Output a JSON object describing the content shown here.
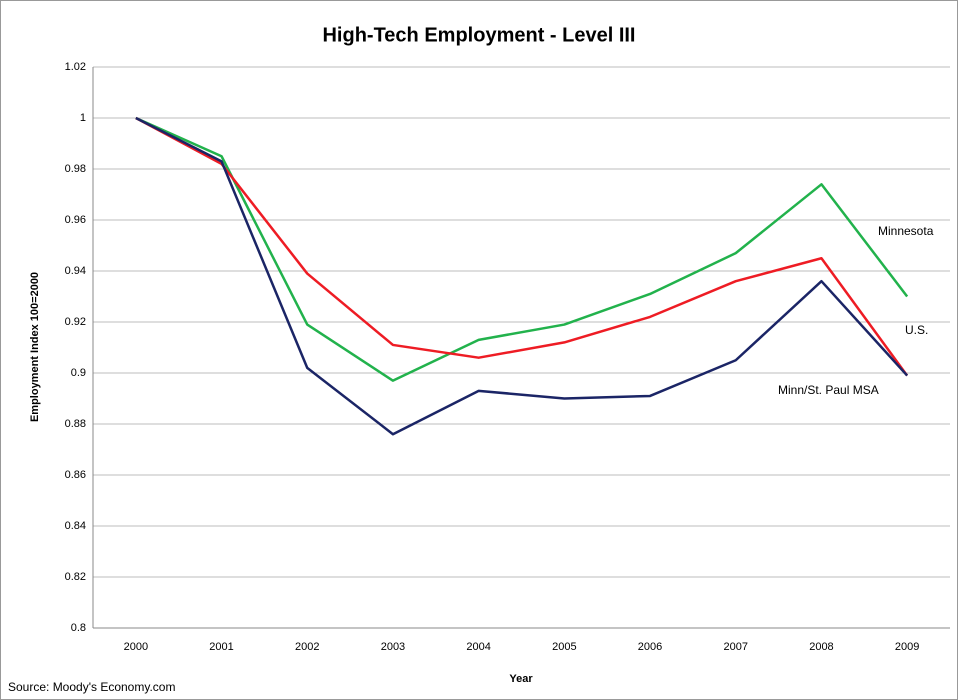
{
  "chart_data": {
    "type": "line",
    "title": "High-Tech Employment - Level III",
    "x_label": "Year",
    "y_label": "Employment Index 100=2000",
    "source": "Source: Moody's Economy.com",
    "categories": [
      "2000",
      "2001",
      "2002",
      "2003",
      "2004",
      "2005",
      "2006",
      "2007",
      "2008",
      "2009"
    ],
    "series": [
      {
        "name": "Minnesota",
        "color": "#22b24c",
        "values": [
          1.0,
          0.985,
          0.919,
          0.897,
          0.913,
          0.919,
          0.931,
          0.947,
          0.974,
          0.93
        ]
      },
      {
        "name": "U.S.",
        "color": "#ee1c24",
        "values": [
          1.0,
          0.982,
          0.939,
          0.911,
          0.906,
          0.912,
          0.922,
          0.936,
          0.945,
          0.899
        ]
      },
      {
        "name": "Minn/St. Paul MSA",
        "color": "#1b2566",
        "values": [
          1.0,
          0.983,
          0.902,
          0.876,
          0.893,
          0.89,
          0.891,
          0.905,
          0.936,
          0.899
        ]
      }
    ],
    "ylim": [
      0.8,
      1.02
    ],
    "yticks": [
      0.8,
      0.82,
      0.84,
      0.86,
      0.88,
      0.9,
      0.92,
      0.94,
      0.96,
      0.98,
      1,
      1.02
    ],
    "grid": true
  }
}
